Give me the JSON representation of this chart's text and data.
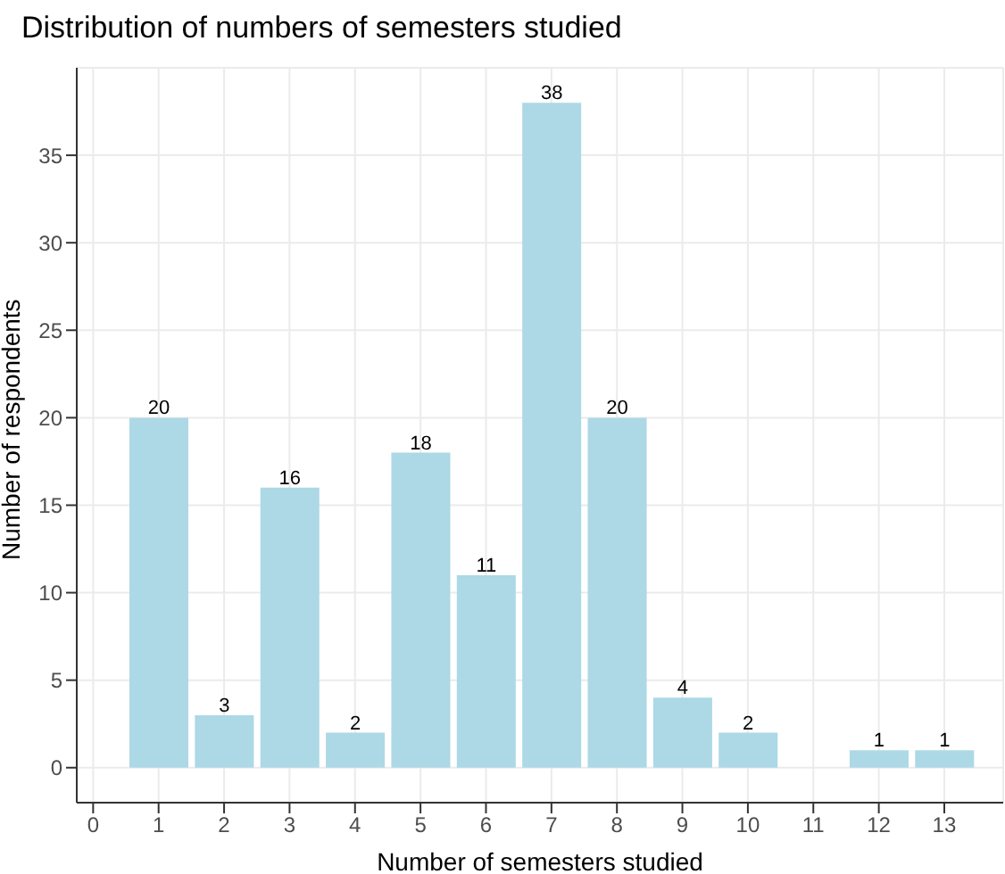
{
  "chart_data": {
    "type": "bar",
    "title": "Distribution of numbers of semesters studied",
    "xlabel": "Number of semesters studied",
    "ylabel": "Number of respondents",
    "x": [
      1,
      2,
      3,
      4,
      5,
      6,
      7,
      8,
      9,
      10,
      12,
      13
    ],
    "values": [
      20,
      3,
      16,
      2,
      18,
      11,
      38,
      20,
      4,
      2,
      1,
      1
    ],
    "color": "#add8e6",
    "xlim": [
      -0.25,
      13.9
    ],
    "xticks": [
      0,
      1,
      2,
      3,
      4,
      5,
      6,
      7,
      8,
      9,
      10,
      11,
      12,
      13
    ],
    "ylim": [
      -2,
      40
    ],
    "yticks": [
      0,
      5,
      10,
      15,
      20,
      25,
      30,
      35
    ],
    "grid": true,
    "data_labels": true
  }
}
